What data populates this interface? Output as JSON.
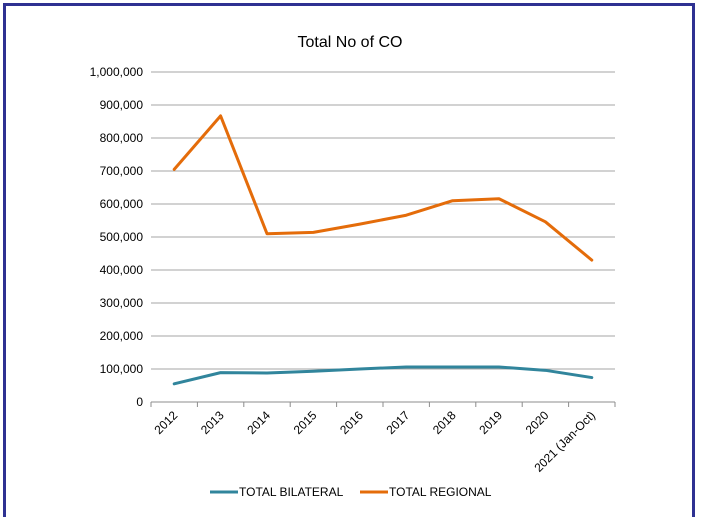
{
  "chart_data": {
    "type": "line",
    "title": "Total No of CO",
    "xlabel": "",
    "ylabel": "",
    "categories": [
      "2012",
      "2013",
      "2014",
      "2015",
      "2016",
      "2017",
      "2018",
      "2019",
      "2020",
      "2021 (Jan-Oct)"
    ],
    "ylim": [
      0,
      1000000
    ],
    "yticks": [
      "0",
      "100,000",
      "200,000",
      "300,000",
      "400,000",
      "500,000",
      "600,000",
      "700,000",
      "800,000",
      "900,000",
      "1,000,000"
    ],
    "grid": true,
    "legend_position": "bottom",
    "series": [
      {
        "name": "TOTAL BILATERAL",
        "color": "#31859c",
        "values": [
          55000,
          89000,
          88000,
          93000,
          100000,
          106000,
          106000,
          106000,
          96000,
          74000
        ]
      },
      {
        "name": "TOTAL REGIONAL",
        "color": "#e46c0a",
        "values": [
          705000,
          867000,
          510000,
          514000,
          539000,
          566000,
          610000,
          616000,
          546000,
          430000
        ]
      }
    ]
  },
  "frame_color": "#2e3192"
}
